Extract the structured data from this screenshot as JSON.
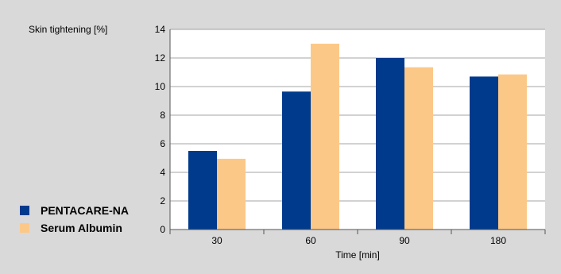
{
  "chart_data": {
    "type": "bar",
    "ylabel": "Skin tightening [%]",
    "xlabel": "Time [min]",
    "categories": [
      "30",
      "60",
      "90",
      "180"
    ],
    "series": [
      {
        "name": "PENTACARE-NA",
        "values": [
          5.5,
          9.65,
          12.0,
          10.7
        ],
        "color": "#003a8c"
      },
      {
        "name": "Serum Albumin",
        "values": [
          4.95,
          13.0,
          11.35,
          10.85
        ],
        "color": "#fcc888"
      }
    ],
    "ylim": [
      0,
      14
    ],
    "yticks": [
      "0",
      "2",
      "4",
      "6",
      "8",
      "10",
      "12",
      "14"
    ],
    "grid": true,
    "legend": "bottom-left"
  }
}
